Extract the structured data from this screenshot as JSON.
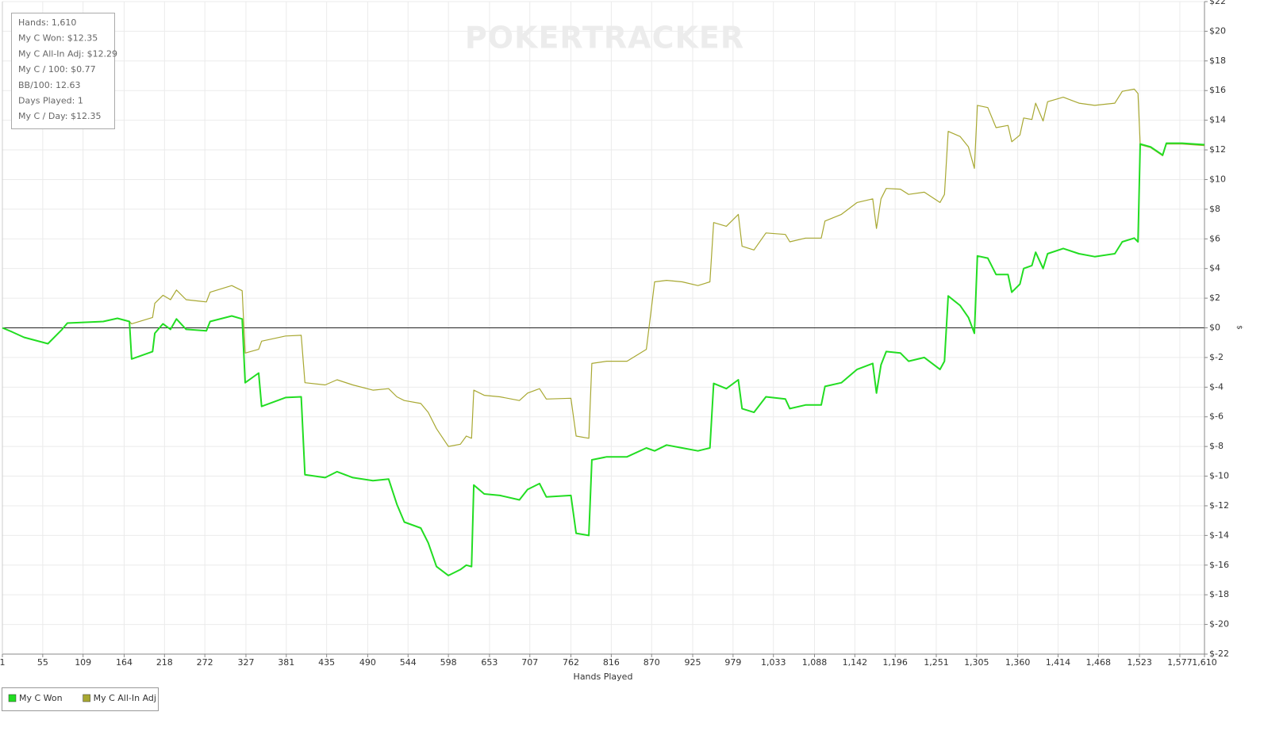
{
  "chart_data": {
    "type": "line",
    "watermark": "POKERTRACKER",
    "info_box": [
      "Hands: 1,610",
      "My C Won: $12.35",
      "My C All-In Adj: $12.29",
      "My C / 100: $0.77",
      "BB/100: 12.63",
      "Days Played: 1",
      "My C / Day: $12.35"
    ],
    "x_label": "Hands Played",
    "y_label": "$",
    "grid": true,
    "legend": "bottom-left",
    "xlim": [
      1,
      1610
    ],
    "xticks": [
      1,
      55,
      109,
      164,
      218,
      272,
      327,
      381,
      435,
      490,
      544,
      598,
      653,
      707,
      762,
      816,
      870,
      925,
      979,
      {
        "value": 1033,
        "label": "1,033"
      },
      {
        "value": 1088,
        "label": "1,088"
      },
      {
        "value": 1142,
        "label": "1,142"
      },
      {
        "value": 1196,
        "label": "1,196"
      },
      {
        "value": 1251,
        "label": "1,251"
      },
      {
        "value": 1305,
        "label": "1,305"
      },
      {
        "value": 1360,
        "label": "1,360"
      },
      {
        "value": 1414,
        "label": "1,414"
      },
      {
        "value": 1468,
        "label": "1,468"
      },
      {
        "value": 1523,
        "label": "1,523"
      },
      {
        "value": 1577,
        "label": "1,577"
      },
      {
        "value": 1610,
        "label": "1,610"
      }
    ],
    "ylim": [
      -22,
      22
    ],
    "yticks": [
      {
        "value": -22,
        "label": "$-22"
      },
      {
        "value": -20,
        "label": "$-20"
      },
      {
        "value": -18,
        "label": "$-18"
      },
      {
        "value": -16,
        "label": "$-16"
      },
      {
        "value": -14,
        "label": "$-14"
      },
      {
        "value": -12,
        "label": "$-12"
      },
      {
        "value": -10,
        "label": "$-10"
      },
      {
        "value": -8,
        "label": "$-8"
      },
      {
        "value": -6,
        "label": "$-6"
      },
      {
        "value": -4,
        "label": "$-4"
      },
      {
        "value": -2,
        "label": "$-2"
      },
      {
        "value": 0,
        "label": "$0"
      },
      {
        "value": 2,
        "label": "$2"
      },
      {
        "value": 4,
        "label": "$4"
      },
      {
        "value": 6,
        "label": "$6"
      },
      {
        "value": 8,
        "label": "$8"
      },
      {
        "value": 10,
        "label": "$10"
      },
      {
        "value": 12,
        "label": "$12"
      },
      {
        "value": 14,
        "label": "$14"
      },
      {
        "value": 16,
        "label": "$16"
      },
      {
        "value": 18,
        "label": "$18"
      },
      {
        "value": 20,
        "label": "$20"
      },
      {
        "value": 22,
        "label": "$22"
      }
    ],
    "x": [
      1,
      14,
      30,
      62,
      81,
      88,
      136,
      155,
      171,
      174,
      202,
      205,
      216,
      226,
      234,
      247,
      274,
      279,
      308,
      322,
      326,
      344,
      348,
      380,
      401,
      406,
      433,
      449,
      470,
      497,
      518,
      529,
      539,
      561,
      571,
      582,
      598,
      614,
      622,
      629,
      632,
      646,
      667,
      693,
      704,
      720,
      729,
      762,
      769,
      786,
      790,
      810,
      837,
      863,
      874,
      890,
      911,
      932,
      948,
      953,
      970,
      986,
      991,
      1007,
      1023,
      1049,
      1055,
      1076,
      1097,
      1102,
      1124,
      1145,
      1166,
      1171,
      1177,
      1184,
      1203,
      1214,
      1235,
      1256,
      1262,
      1267,
      1283,
      1294,
      1302,
      1306,
      1320,
      1331,
      1347,
      1352,
      1363,
      1368,
      1379,
      1384,
      1394,
      1400,
      1421,
      1442,
      1463,
      1490,
      1500,
      1516,
      1521,
      1524,
      1538,
      1554,
      1559,
      1580,
      1610
    ],
    "series": [
      {
        "name": "My C Won",
        "color": "#22dd22",
        "width": 2,
        "values": [
          0,
          -0.27,
          -0.64,
          -1.07,
          -0.1,
          0.32,
          0.43,
          0.64,
          0.43,
          -2.1,
          -1.6,
          -0.37,
          0.27,
          -0.1,
          0.6,
          -0.1,
          -0.2,
          0.43,
          0.8,
          0.6,
          -3.7,
          -3.05,
          -5.3,
          -4.7,
          -4.65,
          -9.9,
          -10.1,
          -9.7,
          -10.1,
          -10.3,
          -10.2,
          -11.9,
          -13.1,
          -13.5,
          -14.5,
          -16.1,
          -16.7,
          -16.3,
          -16.0,
          -16.1,
          -10.6,
          -11.2,
          -11.3,
          -11.6,
          -10.9,
          -10.5,
          -11.4,
          -11.3,
          -13.85,
          -14.0,
          -8.9,
          -8.7,
          -8.7,
          -8.1,
          -8.3,
          -7.9,
          -8.1,
          -8.3,
          -8.1,
          -3.75,
          -4.1,
          -3.5,
          -5.45,
          -5.7,
          -4.65,
          -4.8,
          -5.45,
          -5.2,
          -5.2,
          -3.95,
          -3.7,
          -2.8,
          -2.4,
          -4.4,
          -2.5,
          -1.6,
          -1.7,
          -2.25,
          -2.0,
          -2.8,
          -2.25,
          2.15,
          1.5,
          0.7,
          -0.37,
          4.85,
          4.7,
          3.6,
          3.6,
          2.4,
          2.95,
          4.0,
          4.2,
          5.1,
          4.0,
          5.0,
          5.35,
          5.0,
          4.8,
          5.0,
          5.8,
          6.05,
          5.8,
          12.4,
          12.2,
          11.65,
          12.45,
          12.45,
          12.35
        ]
      },
      {
        "name": "My C All-In Adj",
        "color": "#a8a832",
        "width": 1.2,
        "values": [
          0,
          -0.27,
          -0.64,
          -1.07,
          -0.1,
          0.32,
          0.43,
          0.64,
          0.43,
          0.27,
          0.7,
          1.65,
          2.2,
          1.9,
          2.55,
          1.9,
          1.75,
          2.4,
          2.85,
          2.5,
          -1.7,
          -1.45,
          -0.9,
          -0.55,
          -0.5,
          -3.7,
          -3.85,
          -3.5,
          -3.85,
          -4.2,
          -4.1,
          -4.65,
          -4.9,
          -5.1,
          -5.7,
          -6.8,
          -8.0,
          -7.85,
          -7.3,
          -7.45,
          -4.2,
          -4.55,
          -4.65,
          -4.9,
          -4.4,
          -4.1,
          -4.8,
          -4.75,
          -7.3,
          -7.45,
          -2.4,
          -2.25,
          -2.25,
          -1.45,
          3.1,
          3.2,
          3.1,
          2.85,
          3.1,
          7.1,
          6.85,
          7.65,
          5.5,
          5.25,
          6.4,
          6.3,
          5.8,
          6.05,
          6.05,
          7.2,
          7.65,
          8.45,
          8.7,
          6.7,
          8.7,
          9.4,
          9.35,
          9.0,
          9.15,
          8.45,
          9.0,
          13.25,
          12.9,
          12.2,
          10.75,
          15.0,
          14.85,
          13.5,
          13.65,
          12.55,
          13.0,
          14.15,
          14.05,
          15.15,
          13.95,
          15.25,
          15.55,
          15.15,
          15.0,
          15.15,
          15.95,
          16.1,
          15.8,
          12.35,
          12.15,
          11.6,
          12.4,
          12.4,
          12.29
        ]
      }
    ]
  }
}
